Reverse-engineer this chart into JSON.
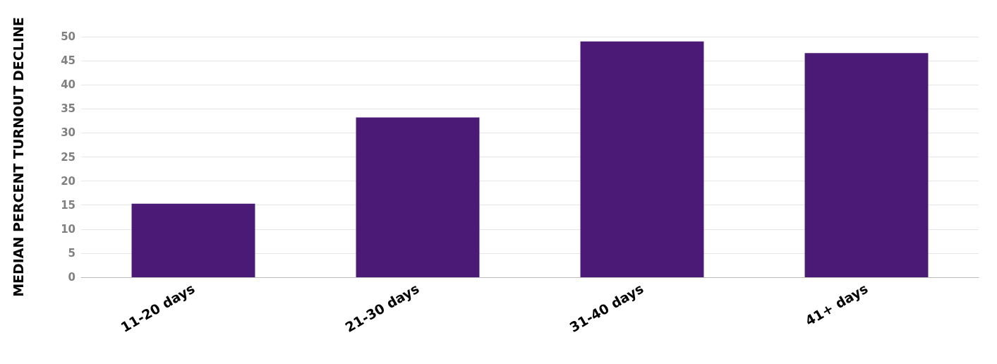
{
  "chart_data": {
    "type": "bar",
    "ylabel": "MEDIAN PERCENT TURNOUT DECLINE",
    "categories": [
      "11-20 days",
      "21-30 days",
      "31-40 days",
      "41+ days"
    ],
    "values": [
      15.3,
      33.2,
      49.0,
      46.6
    ],
    "color": "#4a1a76",
    "ylim": [
      0,
      50
    ],
    "yticks": [
      0,
      5,
      10,
      15,
      20,
      25,
      30,
      35,
      40,
      45,
      50
    ],
    "grid": "y"
  }
}
